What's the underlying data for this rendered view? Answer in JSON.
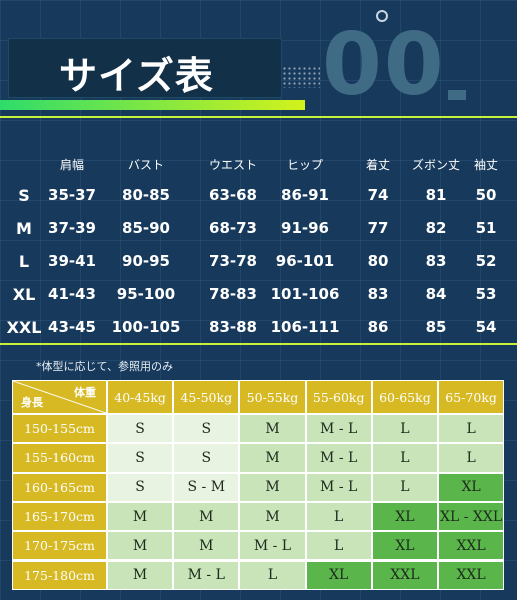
{
  "title": "サイズ表",
  "deco_number": "00",
  "size_chart": {
    "headers": [
      "肩幅",
      "バスト",
      "ウエスト",
      "ヒップ",
      "着丈",
      "ズボン丈",
      "袖丈"
    ],
    "rows": [
      {
        "size": "S",
        "values": [
          "35-37",
          "80-85",
          "63-68",
          "86-91",
          "74",
          "81",
          "50"
        ]
      },
      {
        "size": "M",
        "values": [
          "37-39",
          "85-90",
          "68-73",
          "91-96",
          "77",
          "82",
          "51"
        ]
      },
      {
        "size": "L",
        "values": [
          "39-41",
          "90-95",
          "73-78",
          "96-101",
          "80",
          "83",
          "52"
        ]
      },
      {
        "size": "XL",
        "values": [
          "41-43",
          "95-100",
          "78-83",
          "101-106",
          "83",
          "84",
          "53"
        ]
      },
      {
        "size": "XXL",
        "values": [
          "43-45",
          "100-105",
          "83-88",
          "106-111",
          "86",
          "85",
          "54"
        ]
      }
    ]
  },
  "note": "*体型に応じて、参照用のみ",
  "weight_table": {
    "corner_top": "体重",
    "corner_bottom": "身長",
    "weights": [
      "40-45kg",
      "45-50kg",
      "50-55kg",
      "55-60kg",
      "60-65kg",
      "65-70kg"
    ],
    "heights": [
      "150-155cm",
      "155-160cm",
      "160-165cm",
      "165-170cm",
      "170-175cm",
      "175-180cm"
    ],
    "cells": [
      [
        "S",
        "S",
        "M",
        "M - L",
        "L",
        "L"
      ],
      [
        "S",
        "S",
        "M",
        "M - L",
        "L",
        "L"
      ],
      [
        "S",
        "S - M",
        "M",
        "M - L",
        "L",
        "XL"
      ],
      [
        "M",
        "M",
        "M",
        "L",
        "XL",
        "XL - XXL"
      ],
      [
        "M",
        "M",
        "M - L",
        "L",
        "XL",
        "XXL"
      ],
      [
        "M",
        "M - L",
        "L",
        "XL",
        "XXL",
        "XXL"
      ]
    ],
    "cell_colors": [
      [
        "#e9f3e2",
        "#e9f3e2",
        "#c8e4b8",
        "#c8e4b8",
        "#c8e4b8",
        "#c8e4b8"
      ],
      [
        "#e9f3e2",
        "#e9f3e2",
        "#c8e4b8",
        "#c8e4b8",
        "#c8e4b8",
        "#c8e4b8"
      ],
      [
        "#e9f3e2",
        "#e9f3e2",
        "#c8e4b8",
        "#c8e4b8",
        "#c8e4b8",
        "#5ab64a"
      ],
      [
        "#c8e4b8",
        "#c8e4b8",
        "#c8e4b8",
        "#c8e4b8",
        "#5ab64a",
        "#5ab64a"
      ],
      [
        "#c8e4b8",
        "#c8e4b8",
        "#c8e4b8",
        "#c8e4b8",
        "#5ab64a",
        "#5ab64a"
      ],
      [
        "#c8e4b8",
        "#c8e4b8",
        "#c8e4b8",
        "#5ab64a",
        "#5ab64a",
        "#5ab64a"
      ]
    ],
    "header_color": "#d7b923"
  }
}
